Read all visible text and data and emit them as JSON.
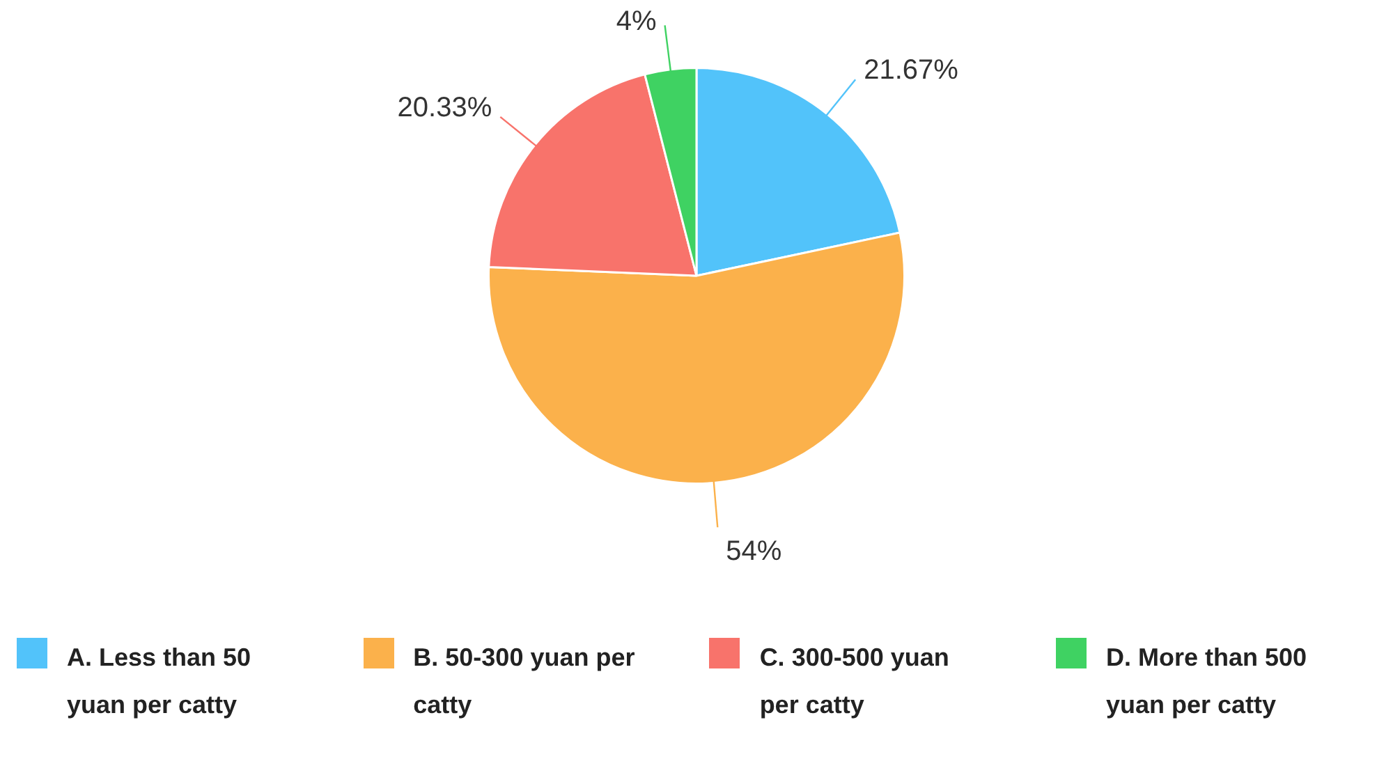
{
  "chart_data": {
    "type": "pie",
    "categories": [
      "A. Less than 50 yuan per catty",
      "B. 50-300 yuan per catty",
      "C. 300-500 yuan per catty",
      "D. More than 500 yuan per catty"
    ],
    "values": [
      21.67,
      54,
      20.33,
      4
    ],
    "colors": [
      "#52c3fa",
      "#fbb14b",
      "#f8736b",
      "#3fd262"
    ],
    "value_labels": [
      "21.67%",
      "54%",
      "20.33%",
      "4%"
    ],
    "legend": "bottom"
  }
}
